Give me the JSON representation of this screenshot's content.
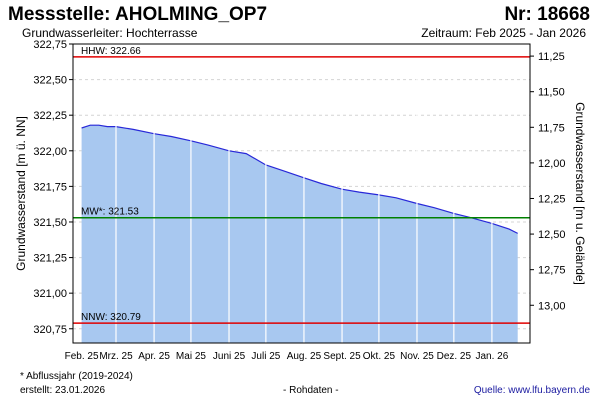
{
  "header": {
    "title": "Messstelle: AHOLMING_OP7",
    "station_no": "Nr: 18668",
    "aquifer": "Grundwasserleiter:   Hochterrasse",
    "period": "Zeitraum: Feb 2025 - Jan 2026"
  },
  "footer": {
    "footnote": "* Abflussjahr (2019-2024)",
    "created": "erstellt:  23.01.2026",
    "raw_data": "- Rohdaten -",
    "source": "Quelle:  www.lfu.bayern.de"
  },
  "colors": {
    "area_fill": "#a8c8f0",
    "line": "#2828d8",
    "hhw_line": "#e00000",
    "nnw_line": "#e00000",
    "mw_line": "#008000",
    "grid": "#d4d4d4"
  },
  "chart_data": {
    "type": "area",
    "ylabel": "Grundwasserstand [m ü. NN]",
    "y2label": "Grundwasserstand [m u. Gelände]",
    "ylim": [
      320.65,
      322.75
    ],
    "y2lim": [
      13.265,
      11.165
    ],
    "yticks": [
      "322,75",
      "322,50",
      "322,25",
      "322,00",
      "321,75",
      "321,50",
      "321,25",
      "321,00",
      "320,75"
    ],
    "y2ticks": [
      "11,25",
      "11,50",
      "11,75",
      "12,00",
      "12,25",
      "12,50",
      "12,75",
      "13,00"
    ],
    "months": [
      "Feb. 25",
      "Mrz. 25",
      "Apr. 25",
      "Mai 25",
      "Juni 25",
      "Juli 25",
      "Aug. 25",
      "Sept. 25",
      "Okt. 25",
      "Nov. 25",
      "Dez. 25",
      "Jan. 26"
    ],
    "grid": true,
    "reference_lines": [
      {
        "label": "HHW: 322.66",
        "value": 322.66,
        "kind": "hhw"
      },
      {
        "label": "MW*: 321.53",
        "value": 321.53,
        "kind": "mw"
      },
      {
        "label": "NNW: 320.79",
        "value": 320.79,
        "kind": "nnw"
      }
    ],
    "series": [
      {
        "x": [
          "2025-02-01",
          "2025-02-08",
          "2025-02-15",
          "2025-02-22",
          "2025-03-01",
          "2025-03-15",
          "2025-04-01",
          "2025-04-15",
          "2025-05-01",
          "2025-05-15",
          "2025-06-01",
          "2025-06-15",
          "2025-07-01",
          "2025-07-15",
          "2025-08-01",
          "2025-08-15",
          "2025-09-01",
          "2025-09-15",
          "2025-10-01",
          "2025-10-15",
          "2025-11-01",
          "2025-11-15",
          "2025-12-01",
          "2025-12-15",
          "2026-01-01",
          "2026-01-15",
          "2026-01-22"
        ],
        "values": [
          322.16,
          322.18,
          322.18,
          322.17,
          322.17,
          322.15,
          322.12,
          322.1,
          322.07,
          322.04,
          322.0,
          321.98,
          321.9,
          321.86,
          321.81,
          321.77,
          321.73,
          321.71,
          321.69,
          321.67,
          321.63,
          321.6,
          321.56,
          321.53,
          321.49,
          321.45,
          321.42
        ]
      }
    ]
  }
}
